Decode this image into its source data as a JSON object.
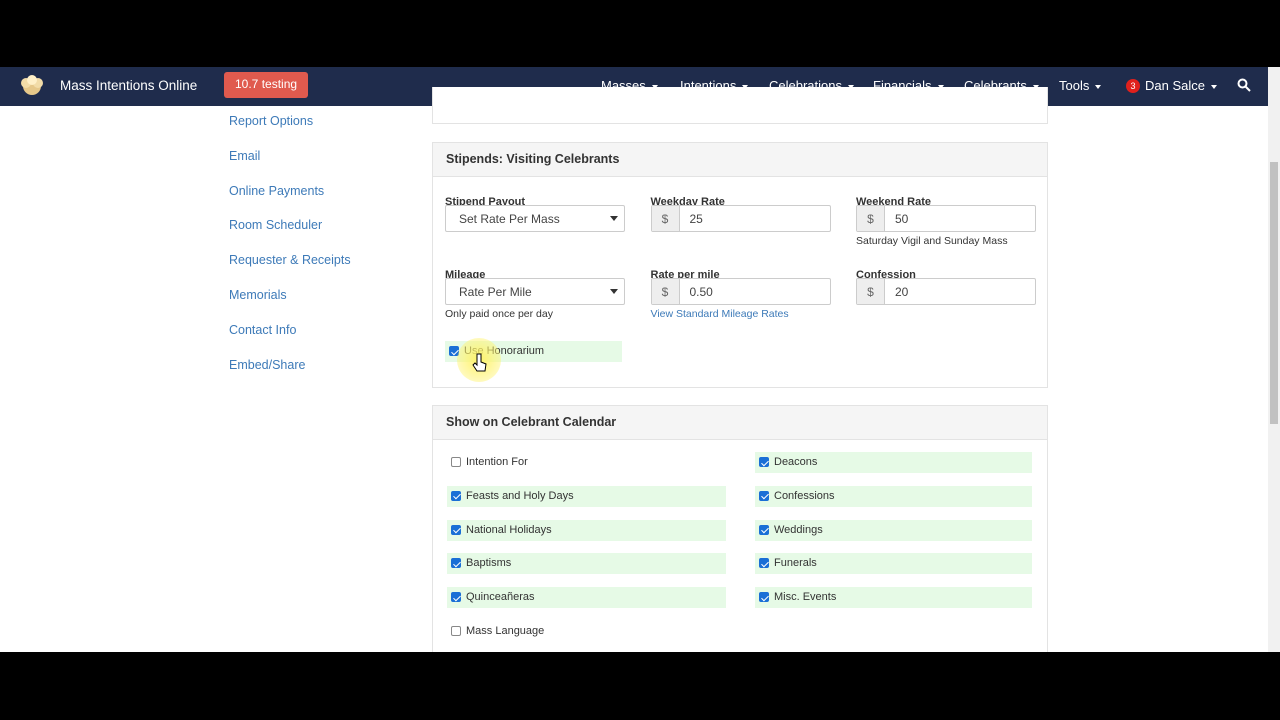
{
  "navbar": {
    "brand": "Mass Intentions Online",
    "badge": "10.7 testing",
    "menu": [
      "Masses",
      "Intentions",
      "Celebrations",
      "Financials",
      "Celebrants",
      "Tools"
    ],
    "notifications": "3",
    "user": "Dan Salce"
  },
  "sidebar": {
    "items": [
      "Report Options",
      "Email",
      "Online Payments",
      "Room Scheduler",
      "Requester & Receipts",
      "Memorials",
      "Contact Info",
      "Embed/Share"
    ]
  },
  "stipends": {
    "title": "Stipends: Visiting Celebrants",
    "fields": [
      {
        "label": "Stipend Payout",
        "kind": "select",
        "value": "Set Rate Per Mass"
      },
      {
        "label": "Weekday Rate",
        "kind": "input",
        "prefix": "$",
        "value": "25"
      },
      {
        "label": "Weekend Rate",
        "kind": "input",
        "prefix": "$",
        "value": "50",
        "help": "Saturday Vigil and Sunday Mass"
      },
      {
        "label": "Mileage",
        "kind": "select",
        "value": "Rate Per Mile",
        "help": "Only paid once per day"
      },
      {
        "label": "Rate per mile",
        "kind": "input",
        "prefix": "$",
        "value": "0.50",
        "link": "View Standard Mileage Rates"
      },
      {
        "label": "Confession",
        "kind": "input",
        "prefix": "$",
        "value": "20"
      }
    ],
    "honorarium": {
      "label": "Use Honorarium",
      "checked": true
    }
  },
  "calendar": {
    "title": "Show on Celebrant Calendar",
    "options": [
      {
        "label": "Intention For",
        "checked": false
      },
      {
        "label": "Deacons",
        "checked": true
      },
      {
        "label": "Feasts and Holy Days",
        "checked": true
      },
      {
        "label": "Confessions",
        "checked": true
      },
      {
        "label": "National Holidays",
        "checked": true
      },
      {
        "label": "Weddings",
        "checked": true
      },
      {
        "label": "Baptisms",
        "checked": true
      },
      {
        "label": "Funerals",
        "checked": true
      },
      {
        "label": "Quinceañeras",
        "checked": true
      },
      {
        "label": "Misc. Events",
        "checked": true
      },
      {
        "label": "Mass Language",
        "checked": false
      }
    ]
  }
}
